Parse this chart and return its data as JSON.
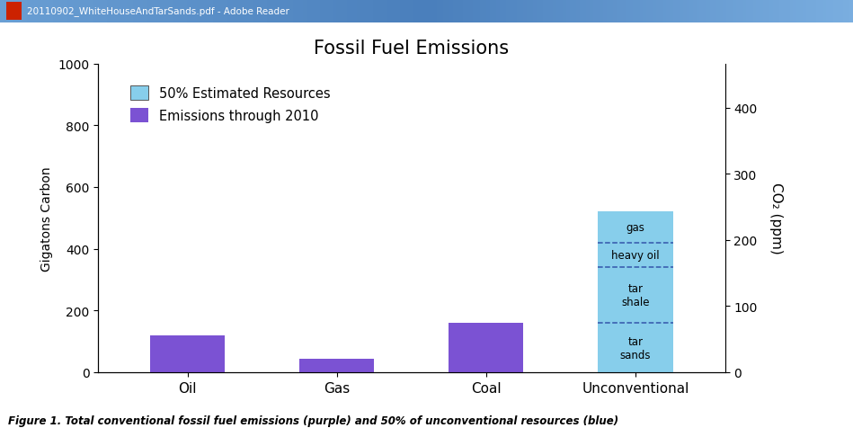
{
  "title": "Fossil Fuel Emissions",
  "categories": [
    "Oil",
    "Gas",
    "Coal",
    "Unconventional"
  ],
  "purple_values": [
    120,
    45,
    160,
    0
  ],
  "blue_total": 520,
  "blue_dashed_lines": [
    160,
    340,
    420
  ],
  "section_labels": [
    "tar\nsands",
    "tar\nshale",
    "heavy oil",
    "gas"
  ],
  "section_centers": [
    80,
    250,
    380,
    470
  ],
  "purple_color": "#7B52D3",
  "blue_color": "#87CEEB",
  "ylabel_left": "Gigatons Carbon",
  "ylabel_right": "CO₂ (ppm)",
  "ylim_left": [
    0,
    1000
  ],
  "ylim_right": [
    0,
    466.7
  ],
  "yticks_left": [
    0,
    200,
    400,
    600,
    800,
    1000
  ],
  "yticks_right": [
    0,
    100,
    200,
    300,
    400
  ],
  "legend_labels": [
    "50% Estimated Resources",
    "Emissions through 2010"
  ],
  "legend_colors": [
    "#87CEEB",
    "#7B52D3"
  ],
  "caption": "Figure 1. Total conventional fossil fuel emissions (purple) and 50% of unconventional resources (blue)",
  "title_fontsize": 15,
  "label_fontsize": 10,
  "tick_fontsize": 10,
  "bar_width": 0.5,
  "background_color": "#ffffff",
  "fig_background": "#ffffff",
  "window_title": "20110902_WhiteHouseAndTarSands.pdf - Adobe Reader",
  "titlebar_color1": "#4a7cc4",
  "titlebar_color2": "#7aaee8"
}
